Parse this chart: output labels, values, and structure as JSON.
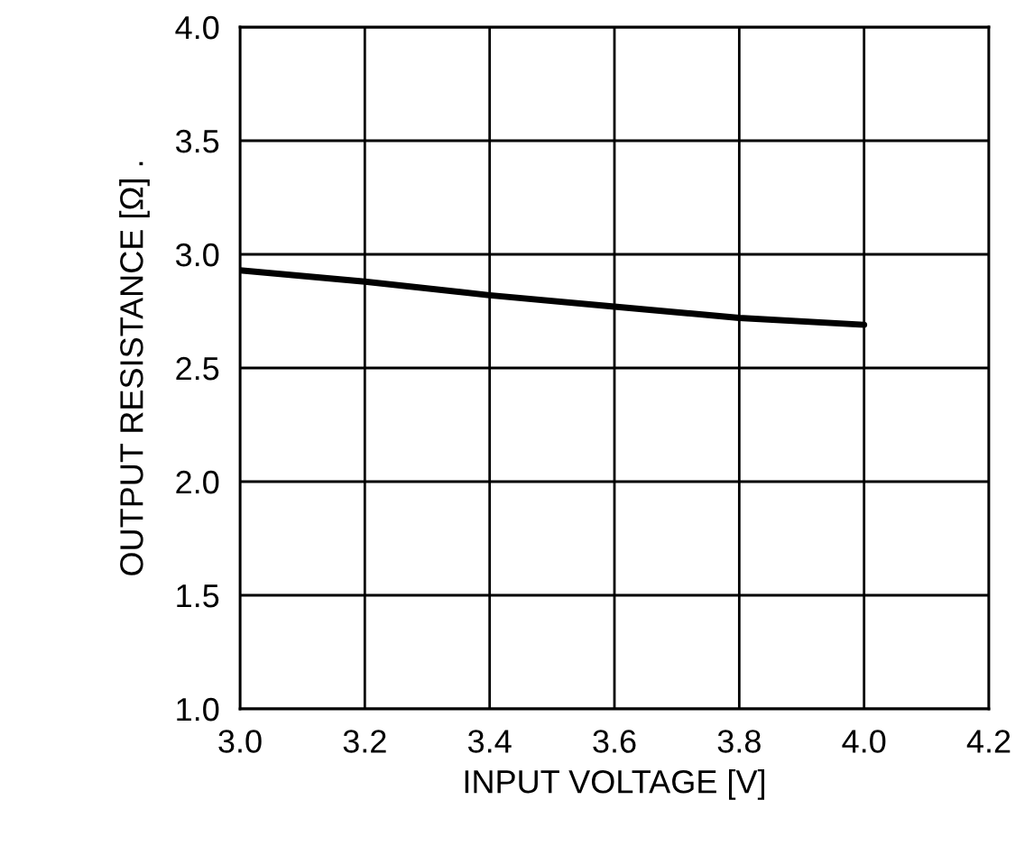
{
  "chart_data": {
    "type": "line",
    "xlabel": "INPUT VOLTAGE [V]",
    "ylabel": "OUTPUT RESISTANCE [Ω] .",
    "x": [
      3.0,
      3.2,
      3.4,
      3.6,
      3.8,
      4.0
    ],
    "series": [
      {
        "color": "#000000",
        "values": [
          2.93,
          2.88,
          2.82,
          2.77,
          2.72,
          2.69
        ]
      }
    ],
    "xlim": [
      3.0,
      4.2
    ],
    "xticks": [
      {
        "value": 3.0,
        "label": "3.0"
      },
      3.2,
      3.4,
      3.6,
      3.8,
      {
        "value": 4.0,
        "label": "4.0"
      },
      4.2
    ],
    "ylim": [
      1.0,
      4.0
    ],
    "yticks": [
      {
        "value": 1.0,
        "label": "1.0"
      },
      1.5,
      {
        "value": 2.0,
        "label": "2.0"
      },
      2.5,
      {
        "value": 3.0,
        "label": "3.0"
      },
      3.5,
      {
        "value": 4.0,
        "label": "4.0"
      }
    ],
    "grid": true,
    "marker": "none",
    "line_style": "solid"
  }
}
